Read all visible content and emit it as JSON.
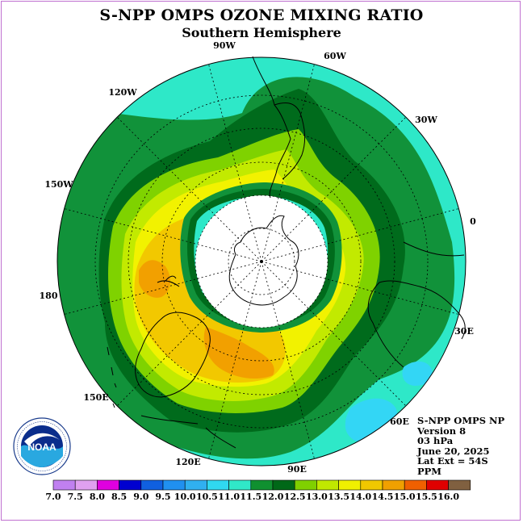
{
  "title": "S-NPP OMPS OZONE MIXING RATIO",
  "subtitle": "Southern Hemisphere",
  "longitude_labels": [
    "90W",
    "60W",
    "30W",
    "0",
    "30E",
    "60E",
    "90E",
    "120E",
    "150E",
    "180",
    "150W",
    "120W"
  ],
  "info": {
    "line1": "S-NPP OMPS NP",
    "line2": "Version 8",
    "line3": "03 hPa",
    "line4": "June 20, 2025",
    "line5": "Lat Ext = 54S",
    "line6": "PPM"
  },
  "logo": {
    "text": "NOAA",
    "ring_text": "NATIONAL OCEANIC AND ATMOSPHERIC ADMINISTRATION U.S. DEPARTMENT OF COMMERCE"
  },
  "colorbar": {
    "labels": [
      "7.0",
      "7.5",
      "8.0",
      "8.5",
      "9.0",
      "9.5",
      "10.0",
      "10.5",
      "11.0",
      "11.5",
      "12.0",
      "12.5",
      "13.0",
      "13.5",
      "14.0",
      "14.5",
      "15.0",
      "15.5",
      "16.0"
    ],
    "colors": [
      "#c080f0",
      "#e0a0f0",
      "#e000e0",
      "#0000d0",
      "#1060e0",
      "#2090f0",
      "#30b0f0",
      "#30d8f0",
      "#30e8c8",
      "#109030",
      "#006818",
      "#80d000",
      "#c0e800",
      "#f0f000",
      "#f0c800",
      "#f0a000",
      "#f06000",
      "#e00000",
      "#806040"
    ]
  },
  "colors": {
    "band_11_0": "#2ee8c8",
    "band_11_5": "#11923a",
    "band_12_0": "#006b1c",
    "band_12_5": "#7fd200",
    "band_13_0": "#c2ea00",
    "band_13_5": "#f2f200",
    "band_14_0": "#f2c800",
    "band_14_5": "#f2a000",
    "band_10_5": "#33d6f5",
    "polar_night": "#ffffff"
  }
}
